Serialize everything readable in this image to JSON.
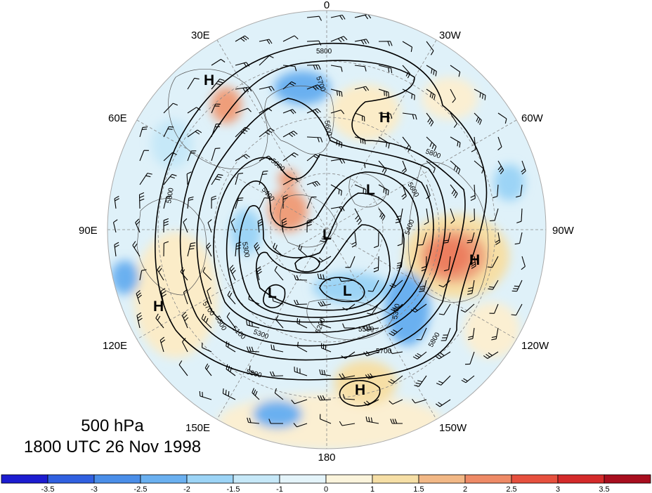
{
  "title": {
    "level": "500 hPa",
    "datetime": "1800 UTC 26 Nov 1998"
  },
  "longitude_labels": [
    "0",
    "30W",
    "60W",
    "90W",
    "120W",
    "150W",
    "180",
    "150E",
    "120E",
    "90E",
    "60E",
    "30E"
  ],
  "contour_labels": [
    "5800",
    "5700",
    "5600",
    "5500",
    "5400",
    "5300",
    "5200",
    "5100"
  ],
  "pressure_centers": [
    {
      "id": "h-north-atlantic",
      "mark": "H"
    },
    {
      "id": "h-europe",
      "mark": "H"
    },
    {
      "id": "h-north-america",
      "mark": "H"
    },
    {
      "id": "h-central-asia",
      "mark": "H"
    },
    {
      "id": "h-north-pacific",
      "mark": "H"
    },
    {
      "id": "l-greenland",
      "mark": "L"
    },
    {
      "id": "l-pole",
      "mark": "L"
    },
    {
      "id": "l-siberia",
      "mark": "L"
    },
    {
      "id": "l-bering",
      "mark": "L"
    }
  ],
  "colorbar": {
    "ticks": [
      "-3.5",
      "-3",
      "-2.5",
      "-2",
      "-1.5",
      "-1",
      "0",
      "1",
      "1.5",
      "2",
      "2.5",
      "3",
      "3.5"
    ],
    "colors": [
      "#1c1cd0",
      "#3060e0",
      "#4a8ee8",
      "#6ab0f0",
      "#9cd4f6",
      "#c6e8f8",
      "#e4f4fa",
      "#fbf4dc",
      "#f6dfa6",
      "#f2b886",
      "#ee8a66",
      "#e6503e",
      "#d42a2a",
      "#a80e1e"
    ]
  },
  "colors": {
    "contour": "#000000",
    "grid": "#888888",
    "barb": "#000000",
    "land_outline": "#555555"
  }
}
